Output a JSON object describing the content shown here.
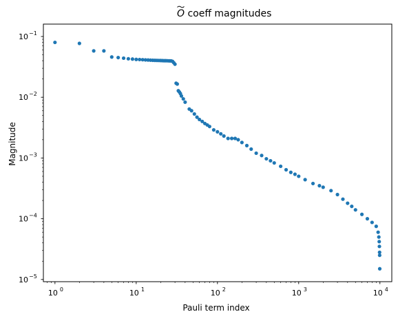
{
  "chart_data": {
    "type": "scatter",
    "title_main": "O",
    "title_rest": " coeff magnitudes",
    "xlabel": "Pauli term index",
    "ylabel": "Magnitude",
    "xscale": "log",
    "yscale": "log",
    "xlim": [
      0.72,
      14000
    ],
    "ylim": [
      9.2e-06,
      0.16
    ],
    "grid": false,
    "marker_color": "#1f77b4",
    "xticks": [
      {
        "value": 1,
        "base": "10",
        "exp": "0"
      },
      {
        "value": 10,
        "base": "10",
        "exp": "1"
      },
      {
        "value": 100,
        "base": "10",
        "exp": "2"
      },
      {
        "value": 1000,
        "base": "10",
        "exp": "3"
      },
      {
        "value": 10000,
        "base": "10",
        "exp": "4"
      }
    ],
    "yticks": [
      {
        "value": 1e-05,
        "base": "10",
        "exp": "−5"
      },
      {
        "value": 0.0001,
        "base": "10",
        "exp": "−4"
      },
      {
        "value": 0.001,
        "base": "10",
        "exp": "−3"
      },
      {
        "value": 0.01,
        "base": "10",
        "exp": "−2"
      },
      {
        "value": 0.1,
        "base": "10",
        "exp": "−1"
      }
    ],
    "points": [
      [
        1,
        0.08
      ],
      [
        2,
        0.077
      ],
      [
        3,
        0.058
      ],
      [
        4,
        0.058
      ],
      [
        5,
        0.046
      ],
      [
        6,
        0.045
      ],
      [
        7,
        0.044
      ],
      [
        8,
        0.043
      ],
      [
        9,
        0.0425
      ],
      [
        10,
        0.042
      ],
      [
        11,
        0.0418
      ],
      [
        12,
        0.0415
      ],
      [
        13,
        0.0412
      ],
      [
        14,
        0.041
      ],
      [
        15,
        0.0408
      ],
      [
        16,
        0.0406
      ],
      [
        17,
        0.0405
      ],
      [
        18,
        0.0404
      ],
      [
        19,
        0.0403
      ],
      [
        20,
        0.0402
      ],
      [
        21,
        0.0401
      ],
      [
        22,
        0.04
      ],
      [
        23,
        0.04
      ],
      [
        24,
        0.0399
      ],
      [
        25,
        0.0398
      ],
      [
        26,
        0.0397
      ],
      [
        27,
        0.0396
      ],
      [
        28,
        0.039
      ],
      [
        29,
        0.037
      ],
      [
        30,
        0.035
      ],
      [
        31,
        0.017
      ],
      [
        32,
        0.0165
      ],
      [
        33,
        0.0128
      ],
      [
        34,
        0.0122
      ],
      [
        35,
        0.0115
      ],
      [
        36,
        0.0105
      ],
      [
        38,
        0.0094
      ],
      [
        40,
        0.0083
      ],
      [
        45,
        0.0064
      ],
      [
        48,
        0.006
      ],
      [
        52,
        0.0053
      ],
      [
        56,
        0.0047
      ],
      [
        60,
        0.0043
      ],
      [
        65,
        0.004
      ],
      [
        70,
        0.0037
      ],
      [
        75,
        0.0035
      ],
      [
        80,
        0.0033
      ],
      [
        90,
        0.0029
      ],
      [
        100,
        0.0027
      ],
      [
        110,
        0.0025
      ],
      [
        120,
        0.0023
      ],
      [
        135,
        0.0021
      ],
      [
        150,
        0.0021
      ],
      [
        165,
        0.0021
      ],
      [
        180,
        0.002
      ],
      [
        200,
        0.0018
      ],
      [
        230,
        0.0016
      ],
      [
        260,
        0.0014
      ],
      [
        300,
        0.0012
      ],
      [
        350,
        0.0011
      ],
      [
        400,
        0.00097
      ],
      [
        450,
        0.0009
      ],
      [
        500,
        0.00083
      ],
      [
        600,
        0.00073
      ],
      [
        700,
        0.00064
      ],
      [
        800,
        0.00058
      ],
      [
        900,
        0.00054
      ],
      [
        1000,
        0.0005
      ],
      [
        1200,
        0.00044
      ],
      [
        1500,
        0.00038
      ],
      [
        1800,
        0.00035
      ],
      [
        2000,
        0.00033
      ],
      [
        2500,
        0.00029
      ],
      [
        3000,
        0.00025
      ],
      [
        3500,
        0.00021
      ],
      [
        4000,
        0.00018
      ],
      [
        4500,
        0.00016
      ],
      [
        5000,
        0.00014
      ],
      [
        6000,
        0.000118
      ],
      [
        7000,
        0.0001
      ],
      [
        8000,
        8.7e-05
      ],
      [
        9000,
        7.5e-05
      ],
      [
        9500,
        6e-05
      ],
      [
        9700,
        5e-05
      ],
      [
        9800,
        4.2e-05
      ],
      [
        9850,
        3.5e-05
      ],
      [
        9900,
        2.8e-05
      ],
      [
        9920,
        2.5e-05
      ],
      [
        9950,
        1.5e-05
      ]
    ]
  }
}
